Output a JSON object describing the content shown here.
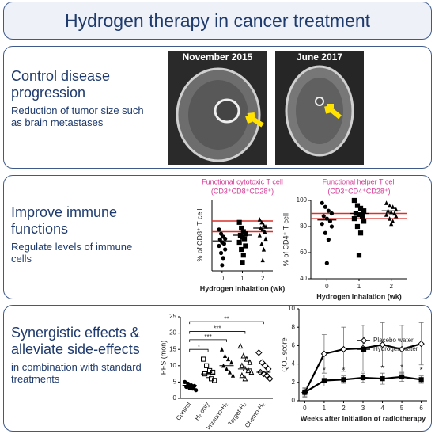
{
  "header": {
    "title": "Hydrogen therapy in cancer treatment"
  },
  "panels": [
    {
      "heading": "Control disease progression",
      "text": "Reduction of tumor size such as brain metastases",
      "images": [
        {
          "label": "November 2015"
        },
        {
          "label": "June 2017"
        }
      ]
    },
    {
      "heading": "Improve immune functions",
      "text": "Regulate levels of immune cells",
      "charts": [
        {
          "type": "scatter",
          "title": "Functional cytotoxic T cell",
          "subtitle": "(CD3⁺CD8⁺CD28⁺)",
          "x_label": "Hydrogen inhalation (wk)",
          "y_label": "% of CD8⁺ T cell",
          "xlim": [
            -0.5,
            2.5
          ],
          "xticks": [
            0,
            1,
            2
          ],
          "ylim": [
            0,
            100
          ],
          "reference_lines": [
            55,
            70
          ],
          "reference_color": "#d9302c",
          "title_color": "#d63a96",
          "means": [
            42,
            50,
            60
          ],
          "points": {
            "x": [
              -0.15,
              -0.05,
              0.05,
              0.15,
              -0.1,
              0,
              0.1,
              -0.15,
              0.15,
              -0.05,
              0.05,
              0,
              0.85,
              0.95,
              1.05,
              1.15,
              0.9,
              1,
              1.1,
              0.85,
              1.15,
              0.95,
              1.05,
              1,
              1.85,
              1.95,
              2.05,
              2.15,
              1.9,
              2,
              2.1,
              1.85,
              2.15,
              1.95,
              2.05,
              2
            ],
            "y": [
              58,
              52,
              48,
              45,
              44,
              40,
              38,
              35,
              30,
              25,
              18,
              8,
              68,
              60,
              55,
              52,
              50,
              47,
              45,
              40,
              35,
              30,
              22,
              12,
              72,
              68,
              64,
              62,
              60,
              58,
              55,
              50,
              45,
              38,
              30,
              15
            ]
          }
        },
        {
          "type": "scatter",
          "title": "Functional helper T cell",
          "subtitle": "(CD3⁺CD4⁺CD28⁺)",
          "x_label": "Hydrogen inhalation (wk)",
          "y_label": "% of CD4⁺ T cell",
          "xlim": [
            -0.5,
            2.5
          ],
          "xticks": [
            0,
            1,
            2
          ],
          "ylim": [
            40,
            100
          ],
          "yticks": [
            40,
            60,
            80,
            100
          ],
          "reference_lines": [
            86,
            90
          ],
          "reference_color": "#d9302c",
          "title_color": "#d63a96",
          "means": [
            85,
            90,
            92
          ],
          "points": {
            "x": [
              -0.15,
              -0.05,
              0.05,
              0.15,
              -0.1,
              0,
              0.1,
              -0.15,
              0.15,
              -0.05,
              0.05,
              0,
              0.85,
              0.95,
              1.05,
              1.15,
              0.9,
              1,
              1.1,
              0.85,
              1.15,
              0.95,
              1.05,
              1,
              1.85,
              1.95,
              2.05,
              2.15,
              1.9,
              2,
              2.1,
              1.85,
              2.15,
              1.95,
              2.05,
              2
            ],
            "y": [
              98,
              95,
              92,
              90,
              88,
              86,
              84,
              82,
              80,
              75,
              70,
              52,
              100,
              96,
              94,
              92,
              90,
              89,
              88,
              86,
              84,
              80,
              75,
              58,
              98,
              96,
              95,
              93,
              92,
              91,
              90,
              89,
              88,
              86,
              84,
              82
            ]
          }
        }
      ]
    },
    {
      "heading": "Synergistic effects & alleviate side-effects",
      "text": "in combination with standard treatments",
      "charts": [
        {
          "type": "dot",
          "y_label": "PFS (mon)",
          "ylim": [
            0,
            25
          ],
          "yticks": [
            0,
            5,
            10,
            15,
            20,
            25
          ],
          "categories": [
            "Control",
            "H₂ only",
            "Immuno-H₂",
            "Target-H₂",
            "Chemo-H₂"
          ],
          "means": [
            4,
            7.5,
            10,
            9,
            8
          ],
          "groups": [
            [
              5,
              4.5,
              4,
              3.8,
              3.5,
              3.2,
              3,
              2.5
            ],
            [
              12,
              10,
              8.5,
              8,
              7.5,
              7,
              6,
              5.5
            ],
            [
              15,
              13,
              12,
              11,
              10,
              9,
              8,
              7
            ],
            [
              16,
              13,
              12,
              11,
              10,
              9,
              8.5,
              8,
              7,
              6
            ],
            [
              14,
              11,
              10,
              9,
              8,
              7.5,
              7,
              6
            ]
          ],
          "brackets": [
            {
              "span": [
                "Control",
                "H₂ only"
              ],
              "height": 15,
              "label": "*"
            },
            {
              "span": [
                "Control",
                "Immuno-H₂"
              ],
              "height": 18,
              "label": "***"
            },
            {
              "span": [
                "Control",
                "Target-H₂"
              ],
              "height": 20.5,
              "label": "***"
            },
            {
              "span": [
                "Control",
                "Chemo-H₂"
              ],
              "height": 23.5,
              "label": "**"
            }
          ]
        },
        {
          "type": "line",
          "x_label": "Weeks after initiation of radiotherapy",
          "y_label": "QOL score",
          "xlim": [
            -0.3,
            6.3
          ],
          "xticks": [
            0,
            1,
            2,
            3,
            4,
            5,
            6
          ],
          "ylim": [
            0,
            10
          ],
          "yticks": [
            0,
            2,
            4,
            6,
            8,
            10
          ],
          "x": [
            0,
            1,
            2,
            3,
            4,
            5,
            6
          ],
          "series": [
            {
              "name": "Placebo water",
              "marker": "open-diamond",
              "color": "#000000",
              "values": [
                0.9,
                5.1,
                5.6,
                5.7,
                6.1,
                5.6,
                6.2
              ],
              "errors": [
                0.4,
                2.1,
                2.4,
                2.5,
                2.4,
                2.6,
                2.3
              ]
            },
            {
              "name": "Hydrogen water",
              "marker": "filled-square",
              "color": "#000000",
              "values": [
                0.9,
                2.2,
                2.3,
                2.5,
                2.4,
                2.6,
                2.3
              ],
              "errors": [
                0.5,
                0.6,
                0.4,
                0.5,
                0.6,
                0.5,
                0.4
              ]
            }
          ],
          "annotations": [
            {
              "x": 1,
              "y": 3.3,
              "label": "*"
            },
            {
              "x": 2,
              "y": 3.3,
              "label": "*"
            },
            {
              "x": 4,
              "y": 3.5,
              "label": "*"
            },
            {
              "x": 5,
              "y": 3.6,
              "label": "*"
            },
            {
              "x": 6,
              "y": 3.3,
              "label": "*"
            }
          ]
        }
      ]
    }
  ]
}
